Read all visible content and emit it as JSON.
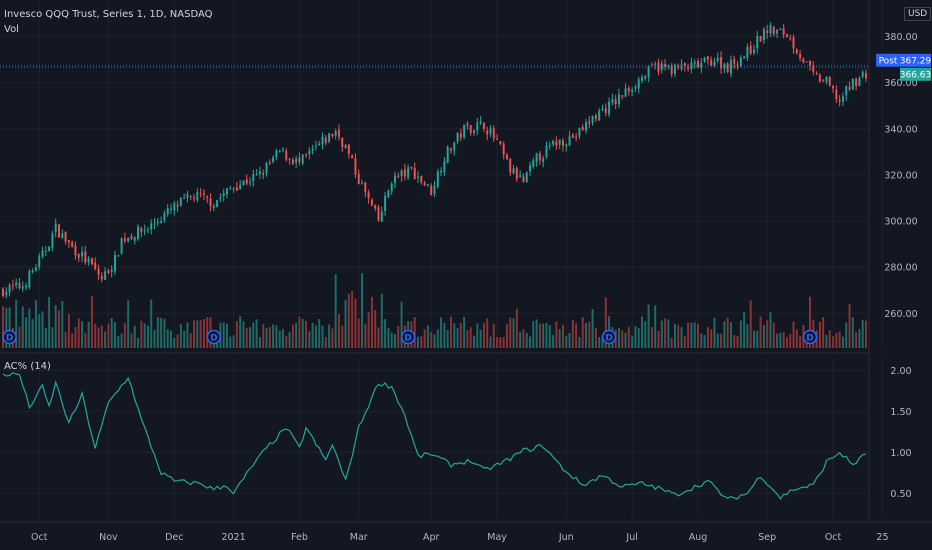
{
  "header": {
    "title": "Invesco QQQ Trust, Series 1, 1D, NASDAQ",
    "volume_label": "Vol",
    "currency": "USD"
  },
  "indicator": {
    "label": "AC% (14)"
  },
  "badges": {
    "post_label": "Post",
    "post_price": "367.29",
    "last_price": "366.63"
  },
  "colors": {
    "background": "#131722",
    "grid": "#1e222d",
    "up": "#26a69a",
    "down": "#ef5350",
    "up_volume": "#1f6b66",
    "down_volume": "#8a3335",
    "indicator_line": "#26a69a",
    "post_badge": "#2962ff",
    "last_badge": "#26a69a",
    "dividend_marker": "#2962ff"
  },
  "chart_data": {
    "type": "candlestick",
    "price_axis": {
      "ticks": [
        260,
        280,
        300,
        320,
        340,
        360,
        380
      ],
      "range": [
        245,
        388
      ]
    },
    "indicator_axis": {
      "ticks": [
        0.5,
        1.0,
        1.5,
        2.0
      ],
      "tick_labels": [
        "0.50",
        "1.00",
        "1.50",
        "2.00"
      ],
      "range": [
        0.2,
        2.15
      ]
    },
    "x_axis_labels": [
      "Oct",
      "Nov",
      "Dec",
      "2021",
      "Feb",
      "Mar",
      "Apr",
      "May",
      "Jun",
      "Jul",
      "Aug",
      "Sep",
      "Oct",
      "25"
    ],
    "x_axis_label_index": [
      11,
      32,
      52,
      70,
      90,
      108,
      130,
      150,
      171,
      191,
      211,
      232,
      252,
      267
    ],
    "post_price": 367.29,
    "last_price": 366.63,
    "dividend_markers": [
      "D",
      "D",
      "D",
      "D",
      "D"
    ],
    "dividend_marker_index": [
      2,
      64,
      123,
      184,
      245
    ],
    "close_anchors": [
      [
        0,
        270
      ],
      [
        6,
        272
      ],
      [
        12,
        285
      ],
      [
        16,
        297
      ],
      [
        20,
        290
      ],
      [
        26,
        282
      ],
      [
        30,
        275
      ],
      [
        34,
        283
      ],
      [
        36,
        292
      ],
      [
        44,
        297
      ],
      [
        52,
        306
      ],
      [
        58,
        311
      ],
      [
        64,
        308
      ],
      [
        70,
        315
      ],
      [
        78,
        320
      ],
      [
        84,
        330
      ],
      [
        90,
        325
      ],
      [
        96,
        333
      ],
      [
        101,
        339
      ],
      [
        104,
        332
      ],
      [
        108,
        318
      ],
      [
        112,
        306
      ],
      [
        114,
        300
      ],
      [
        118,
        318
      ],
      [
        124,
        322
      ],
      [
        130,
        313
      ],
      [
        134,
        328
      ],
      [
        140,
        340
      ],
      [
        146,
        342
      ],
      [
        150,
        334
      ],
      [
        154,
        322
      ],
      [
        158,
        317
      ],
      [
        162,
        327
      ],
      [
        168,
        334
      ],
      [
        174,
        337
      ],
      [
        180,
        346
      ],
      [
        186,
        352
      ],
      [
        192,
        360
      ],
      [
        198,
        367
      ],
      [
        204,
        366
      ],
      [
        210,
        367
      ],
      [
        216,
        370
      ],
      [
        220,
        367
      ],
      [
        226,
        373
      ],
      [
        232,
        383
      ],
      [
        238,
        381
      ],
      [
        242,
        372
      ],
      [
        246,
        363
      ],
      [
        250,
        360
      ],
      [
        254,
        352
      ],
      [
        258,
        360
      ],
      [
        262,
        364
      ]
    ],
    "indicator_anchors": [
      [
        0,
        1.95
      ],
      [
        5,
        1.95
      ],
      [
        8,
        1.55
      ],
      [
        12,
        1.8
      ],
      [
        14,
        1.55
      ],
      [
        16,
        1.85
      ],
      [
        20,
        1.35
      ],
      [
        24,
        1.7
      ],
      [
        28,
        1.05
      ],
      [
        32,
        1.6
      ],
      [
        38,
        1.92
      ],
      [
        42,
        1.4
      ],
      [
        48,
        0.75
      ],
      [
        52,
        0.65
      ],
      [
        60,
        0.62
      ],
      [
        64,
        0.55
      ],
      [
        68,
        0.6
      ],
      [
        70,
        0.5
      ],
      [
        76,
        0.85
      ],
      [
        80,
        1.05
      ],
      [
        86,
        1.3
      ],
      [
        90,
        1.05
      ],
      [
        92,
        1.3
      ],
      [
        98,
        0.9
      ],
      [
        100,
        1.1
      ],
      [
        104,
        0.65
      ],
      [
        108,
        1.3
      ],
      [
        114,
        1.85
      ],
      [
        118,
        1.8
      ],
      [
        122,
        1.45
      ],
      [
        126,
        0.95
      ],
      [
        130,
        0.98
      ],
      [
        136,
        0.85
      ],
      [
        142,
        0.9
      ],
      [
        146,
        0.78
      ],
      [
        152,
        0.88
      ],
      [
        158,
        1.02
      ],
      [
        164,
        1.08
      ],
      [
        170,
        0.8
      ],
      [
        176,
        0.6
      ],
      [
        182,
        0.72
      ],
      [
        188,
        0.58
      ],
      [
        194,
        0.62
      ],
      [
        200,
        0.55
      ],
      [
        204,
        0.48
      ],
      [
        210,
        0.58
      ],
      [
        214,
        0.65
      ],
      [
        220,
        0.42
      ],
      [
        226,
        0.5
      ],
      [
        230,
        0.72
      ],
      [
        236,
        0.45
      ],
      [
        240,
        0.55
      ],
      [
        246,
        0.6
      ],
      [
        250,
        0.88
      ],
      [
        254,
        1.0
      ],
      [
        258,
        0.85
      ],
      [
        262,
        0.98
      ]
    ],
    "series": [
      {
        "name": "Vol",
        "note": "volume histogram, relative heights"
      },
      {
        "name": "AC% (14)",
        "note": "indicator line"
      }
    ]
  }
}
